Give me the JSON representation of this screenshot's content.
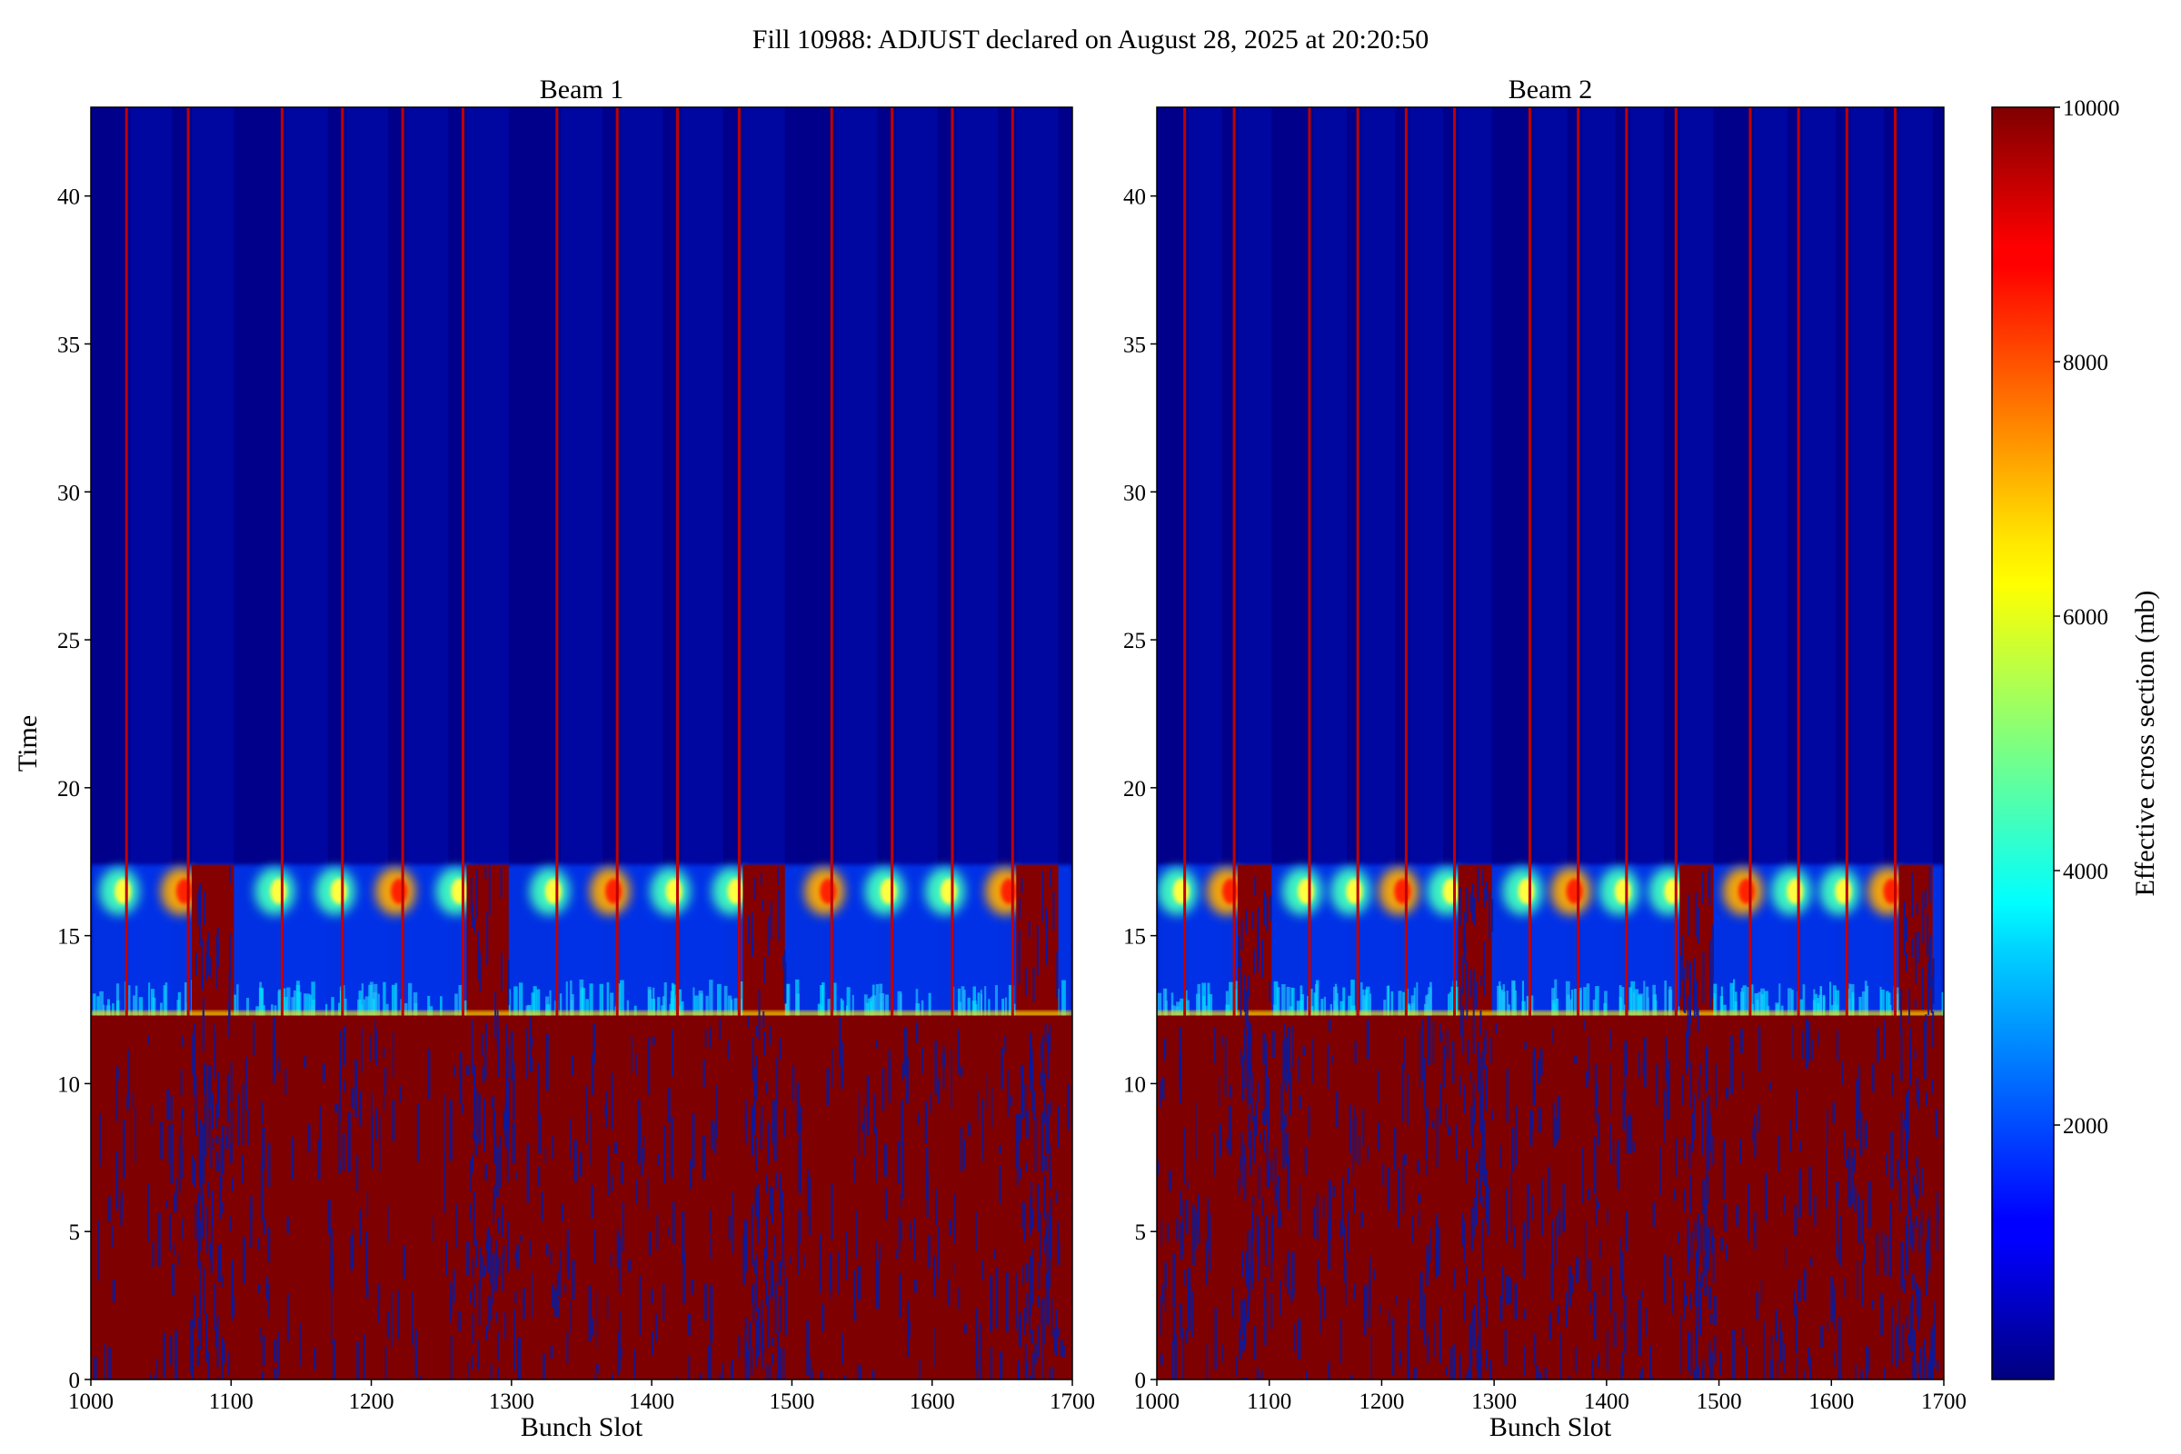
{
  "figure": {
    "title": "Fill 10988: ADJUST declared on August 28, 2025 at 20:20:50"
  },
  "chart_data": [
    {
      "type": "heatmap",
      "title": "Beam 1",
      "xlabel": "Bunch Slot",
      "ylabel": "Time",
      "xlim": [
        1000,
        1700
      ],
      "ylim": [
        0,
        43
      ],
      "xticks": [
        1000,
        1100,
        1200,
        1300,
        1400,
        1500,
        1600,
        1700
      ],
      "yticks": [
        0,
        5,
        10,
        15,
        20,
        25,
        30,
        35,
        40
      ],
      "colormap": "jet",
      "transition_time": 12.3,
      "flash_band": [
        14.8,
        17.4
      ],
      "train_starts": [
        1028,
        1072,
        1139,
        1182,
        1225,
        1268,
        1335,
        1378,
        1421,
        1465,
        1531,
        1574,
        1617,
        1660
      ],
      "hot_gaps": [
        [
          1072,
          1102
        ],
        [
          1268,
          1298
        ],
        [
          1465,
          1495
        ],
        [
          1660,
          1690
        ]
      ],
      "bright_lines": [
        1028,
        1072,
        1139,
        1182,
        1225,
        1268,
        1335,
        1378,
        1421,
        1465,
        1531,
        1574,
        1617,
        1660
      ]
    },
    {
      "type": "heatmap",
      "title": "Beam 2",
      "xlabel": "Bunch Slot",
      "ylabel": "",
      "xlim": [
        1000,
        1700
      ],
      "ylim": [
        0,
        43
      ],
      "xticks": [
        1000,
        1100,
        1200,
        1300,
        1400,
        1500,
        1600,
        1700
      ],
      "yticks": [
        0,
        5,
        10,
        15,
        20,
        25,
        30,
        35,
        40
      ],
      "colormap": "jet",
      "transition_time": 12.3,
      "flash_band": [
        14.8,
        17.4
      ],
      "train_starts": [
        1028,
        1072,
        1139,
        1182,
        1225,
        1268,
        1335,
        1378,
        1421,
        1465,
        1531,
        1574,
        1617,
        1660
      ],
      "hot_gaps": [
        [
          1072,
          1102
        ],
        [
          1268,
          1298
        ],
        [
          1465,
          1495
        ],
        [
          1660,
          1690
        ]
      ],
      "bright_lines": [
        1028,
        1072,
        1139,
        1182,
        1225,
        1268,
        1335,
        1378,
        1421,
        1465,
        1531,
        1574,
        1617,
        1660
      ]
    }
  ],
  "colorbar": {
    "label": "Effective cross section (mb)",
    "range": [
      0,
      10000
    ],
    "ticks": [
      2000,
      4000,
      6000,
      8000,
      10000
    ],
    "colormap": "jet"
  },
  "colors": {
    "low": "#00007f",
    "high": "#7f0000",
    "background": "#ffffff"
  }
}
